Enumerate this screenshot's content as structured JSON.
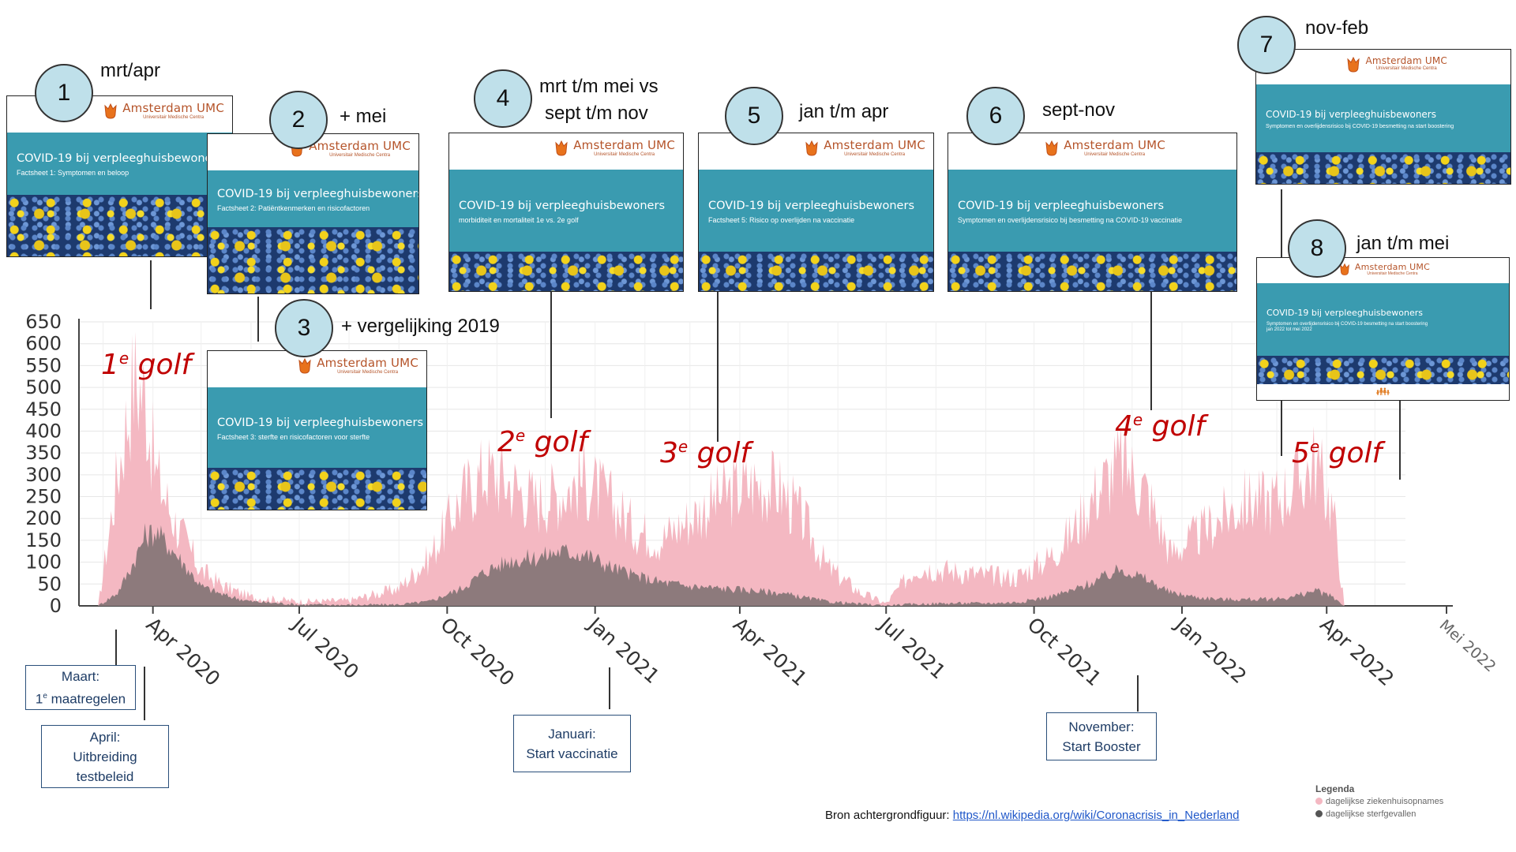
{
  "chart_data": {
    "type": "area",
    "x": [
      "2020-02-27",
      "2020-03-10",
      "2020-03-20",
      "2020-03-27",
      "2020-04-03",
      "2020-04-15",
      "2020-05-01",
      "2020-05-15",
      "2020-06-01",
      "2020-07-01",
      "2020-08-01",
      "2020-09-01",
      "2020-09-20",
      "2020-10-10",
      "2020-10-25",
      "2020-11-10",
      "2020-11-25",
      "2020-12-10",
      "2020-12-25",
      "2021-01-10",
      "2021-01-25",
      "2021-02-10",
      "2021-03-01",
      "2021-03-20",
      "2021-04-10",
      "2021-04-25",
      "2021-05-10",
      "2021-05-25",
      "2021-06-15",
      "2021-07-01",
      "2021-07-20",
      "2021-08-10",
      "2021-09-01",
      "2021-09-20",
      "2021-10-10",
      "2021-10-25",
      "2021-11-10",
      "2021-11-25",
      "2021-12-10",
      "2021-12-25",
      "2022-01-10",
      "2022-01-25",
      "2022-02-10",
      "2022-02-25",
      "2022-03-10",
      "2022-03-25",
      "2022-04-05",
      "2022-04-12"
    ],
    "series": [
      {
        "values": [
          0,
          300,
          520,
          480,
          300,
          190,
          80,
          45,
          20,
          10,
          12,
          40,
          110,
          250,
          310,
          280,
          240,
          260,
          290,
          240,
          180,
          150,
          200,
          250,
          280,
          270,
          200,
          90,
          30,
          5,
          90,
          80,
          70,
          65,
          110,
          170,
          270,
          330,
          260,
          120,
          160,
          200,
          240,
          240,
          270,
          330,
          220,
          0
        ]
      },
      {
        "values": [
          0,
          30,
          100,
          160,
          170,
          120,
          45,
          25,
          10,
          3,
          2,
          3,
          10,
          40,
          80,
          105,
          110,
          125,
          120,
          90,
          70,
          55,
          45,
          40,
          35,
          30,
          20,
          10,
          4,
          1,
          4,
          6,
          6,
          8,
          20,
          35,
          60,
          85,
          60,
          30,
          20,
          15,
          15,
          15,
          20,
          35,
          20,
          0
        ]
      }
    ],
    "ylim": [
      0,
      650
    ],
    "yticks": [
      "650",
      "600",
      "550",
      "500",
      "450",
      "400",
      "350",
      "300",
      "250",
      "200",
      "150",
      "100",
      "50",
      "0"
    ],
    "xticks": [
      "Apr 2020",
      "Jul 2020",
      "Oct 2020",
      "Jan 2021",
      "Apr 2021",
      "Jul 2021",
      "Oct 2021",
      "Jan 2022",
      "Apr 2022",
      "Mei 2022"
    ],
    "colors": {
      "admissions": "#f4b8c2",
      "deaths": "#7a6e70"
    },
    "grid": true,
    "legend_position": "bottom-right"
  },
  "waves": [
    {
      "num": "1",
      "sup": "e",
      "word": "golf"
    },
    {
      "num": "2",
      "sup": "e",
      "word": "golf"
    },
    {
      "num": "3",
      "sup": "e",
      "word": "golf"
    },
    {
      "num": "4",
      "sup": "e",
      "word": "golf"
    },
    {
      "num": "5",
      "sup": "e",
      "word": "golf"
    }
  ],
  "factsheets": [
    {
      "badge": "1",
      "period": "mrt/apr",
      "title": "COVID-19 bij verpleeghuisbewone",
      "subtitle": "Factsheet 1: Symptomen en beloop"
    },
    {
      "badge": "2",
      "period": "+ mei",
      "title": "COVID-19 bij verpleeghuisbewoners",
      "subtitle": "Factsheet 2: Patiëntkenmerken en risicofactoren"
    },
    {
      "badge": "3",
      "period": "+ vergelijking 2019",
      "title": "COVID-19 bij verpleeghuisbewoners",
      "subtitle": "Factsheet 3: sterfte en risicofactoren voor sterfte"
    },
    {
      "badge": "4",
      "period_line1": "mrt t/m mei vs",
      "period_line2": "sept t/m nov",
      "title": "COVID-19 bij verpleeghuisbewoners",
      "subtitle": "morbiditeit en mortaliteit 1e vs. 2e golf"
    },
    {
      "badge": "5",
      "period": "jan t/m apr",
      "title": "COVID-19 bij verpleeghuisbewoners",
      "subtitle": "Factsheet 5: Risico op overlijden na vaccinatie"
    },
    {
      "badge": "6",
      "period": "sept-nov",
      "title": "COVID-19 bij verpleeghuisbewoners",
      "subtitle": "Symptomen en overlijdensrisico bij besmetting na COVID-19 vaccinatie"
    },
    {
      "badge": "7",
      "period": "nov-feb",
      "title": "COVID-19 bij verpleeghuisbewoners",
      "subtitle": "Symptomen en overlijdensrisico bij COVID-19 besmetting na start boostering"
    },
    {
      "badge": "8",
      "period": "jan t/m mei",
      "title": "COVID-19 bij verpleeghuisbewoners",
      "subtitle": "Symptomen en overlijdensrisico bij COVID-19 besmetting na start boostering",
      "subtitle2": "jan 2022 tot mei 2022"
    }
  ],
  "logo": {
    "name": "Amsterdam UMC",
    "sub": "Universitair Medische Centra"
  },
  "events": [
    {
      "line1": "Maart:",
      "line2_pre": "1",
      "line2_sup": "e",
      "line2_post": " maatregelen"
    },
    {
      "line1": "April:",
      "line2": "Uitbreiding",
      "line3": "testbeleid"
    },
    {
      "line1": "Januari:",
      "line2": "Start vaccinatie"
    },
    {
      "line1": "November:",
      "line2": "Start Booster"
    }
  ],
  "source": {
    "label": "Bron achtergrondfiguur:",
    "link": "https://nl.wikipedia.org/wiki/Coronacrisis_in_Nederland"
  },
  "legend": {
    "title": "Legenda",
    "items": [
      "dagelijkse ziekenhuisopnames",
      "dagelijkse sterfgevallen"
    ]
  }
}
